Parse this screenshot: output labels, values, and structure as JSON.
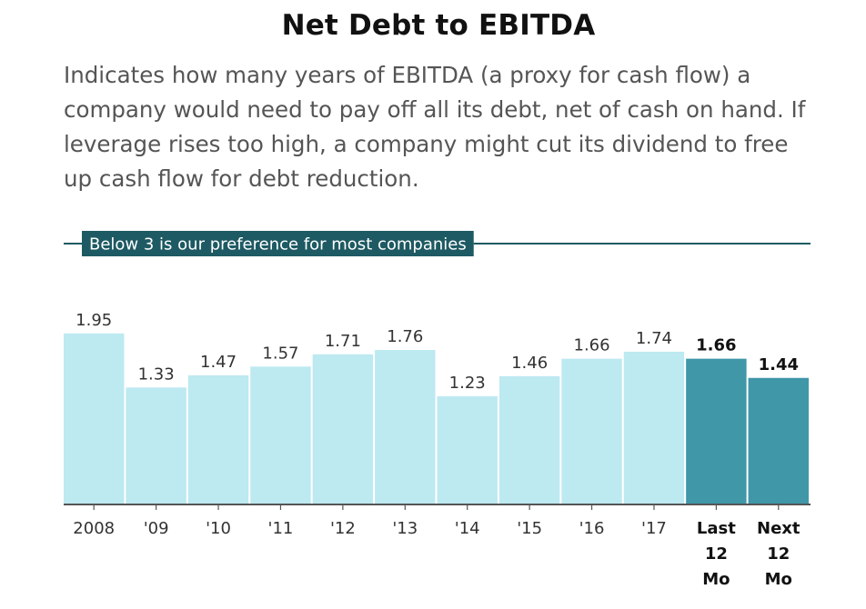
{
  "header": {
    "title": "Net Debt to EBITDA",
    "subtitle": "Indicates how many years of EBITDA (a proxy for cash flow) a company would need to pay off all its debt, net of cash on hand. If leverage rises too high, a company might cut its dividend to free up cash flow for debt reduction."
  },
  "colors": {
    "bar": "#bde9f1",
    "bar_highlight": "#3f97a8",
    "reference": "#1e5a63",
    "axis": "#555555"
  },
  "chart_data": {
    "type": "bar",
    "title": "Net Debt to EBITDA",
    "categories": [
      "2008",
      "'09",
      "'10",
      "'11",
      "'12",
      "'13",
      "'14",
      "'15",
      "'16",
      "'17",
      "Last 12 Mo",
      "Next 12 Mo"
    ],
    "category_lines": [
      [
        "2008"
      ],
      [
        "'09"
      ],
      [
        "'10"
      ],
      [
        "'11"
      ],
      [
        "'12"
      ],
      [
        "'13"
      ],
      [
        "'14"
      ],
      [
        "'15"
      ],
      [
        "'16"
      ],
      [
        "'17"
      ],
      [
        "Last",
        "12",
        "Mo"
      ],
      [
        "Next",
        "12",
        "Mo"
      ]
    ],
    "values": [
      1.95,
      1.33,
      1.47,
      1.57,
      1.71,
      1.76,
      1.23,
      1.46,
      1.66,
      1.74,
      1.66,
      1.44
    ],
    "value_labels": [
      "1.95",
      "1.33",
      "1.47",
      "1.57",
      "1.71",
      "1.76",
      "1.23",
      "1.46",
      "1.66",
      "1.74",
      "1.66",
      "1.44"
    ],
    "highlighted": [
      false,
      false,
      false,
      false,
      false,
      false,
      false,
      false,
      false,
      false,
      true,
      true
    ],
    "reference_line": {
      "value": 3,
      "label": "Below 3 is our preference for most companies"
    },
    "ylim": [
      0,
      3
    ],
    "xlabel": "",
    "ylabel": "",
    "grid": false,
    "legend": "none"
  }
}
